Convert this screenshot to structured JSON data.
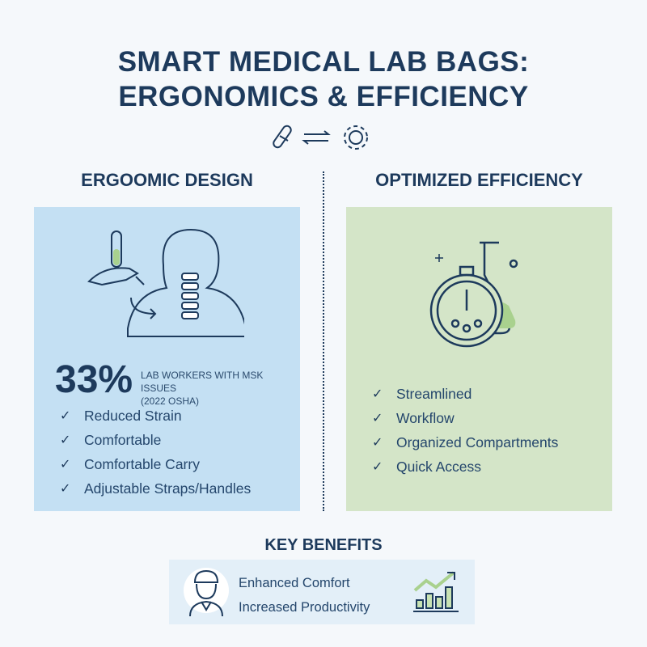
{
  "title_line1": "SMART MEDICAL LAB BAGS:",
  "title_line2": "ERGONOMICS & EFFICIENCY",
  "left": {
    "heading": "ERGOOMIC DESIGN",
    "stat": "33%",
    "stat_label_line1": "LAB WORKERS WITH MSK ISSUES",
    "stat_label_line2": "(2022 OSHA)",
    "items": [
      "Reduced Strain",
      "Comfortable",
      "Comfortable Carry",
      "Adjustable Straps/Handles"
    ]
  },
  "right": {
    "heading": "OPTIMIZED EFFICIENCY",
    "items": [
      "Streamlined",
      "Workflow",
      "Organized Compartments",
      "Quick Access"
    ]
  },
  "benefits": {
    "heading": "KEY BENEFITS",
    "items": [
      "Enhanced Comfort",
      "Increased Productivity"
    ]
  },
  "colors": {
    "navy": "#1d3a5c",
    "left_panel": "#c4e0f3",
    "right_panel": "#d4e5c8",
    "accent_green": "#a9d18e"
  },
  "icons": [
    "test-tube-icon",
    "exchange-arrows-icon",
    "gear-icon",
    "hand-test-tube-spine-icon",
    "stopwatch-flask-icon",
    "lab-worker-avatar-icon",
    "growth-chart-icon",
    "check-icon"
  ]
}
